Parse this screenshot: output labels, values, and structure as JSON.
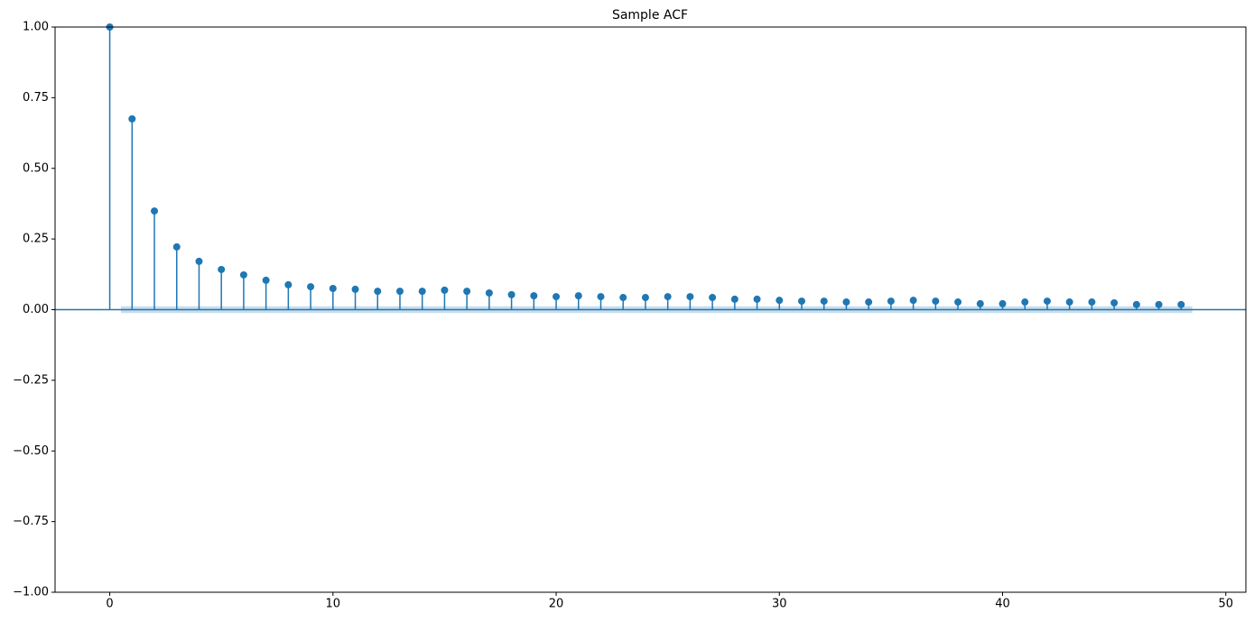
{
  "chart_data": {
    "type": "stem",
    "title": "Sample ACF",
    "x": [
      0,
      1,
      2,
      3,
      4,
      5,
      6,
      7,
      8,
      9,
      10,
      11,
      12,
      13,
      14,
      15,
      16,
      17,
      18,
      19,
      20,
      21,
      22,
      23,
      24,
      25,
      26,
      27,
      28,
      29,
      30,
      31,
      32,
      33,
      34,
      35,
      36,
      37,
      38,
      39,
      40,
      41,
      42,
      43,
      44,
      45,
      46,
      47,
      48
    ],
    "values": [
      1.0,
      0.675,
      0.349,
      0.222,
      0.171,
      0.142,
      0.123,
      0.104,
      0.088,
      0.081,
      0.075,
      0.072,
      0.065,
      0.065,
      0.065,
      0.069,
      0.065,
      0.059,
      0.053,
      0.049,
      0.046,
      0.049,
      0.046,
      0.043,
      0.043,
      0.046,
      0.046,
      0.043,
      0.037,
      0.037,
      0.033,
      0.03,
      0.03,
      0.027,
      0.027,
      0.03,
      0.033,
      0.03,
      0.027,
      0.021,
      0.021,
      0.027,
      0.03,
      0.027,
      0.027,
      0.024,
      0.018,
      0.018,
      0.018
    ],
    "color": "#1f77b4",
    "band_x": [
      0.5,
      48.5
    ],
    "band_upper": [
      0.012,
      0.012
    ],
    "band_lower": [
      -0.012,
      -0.012
    ],
    "xlim": [
      -2.45,
      50.9
    ],
    "xticks": [
      0,
      10,
      20,
      30,
      40,
      50
    ],
    "ylim": [
      -1,
      1
    ],
    "yticks": [
      {
        "value": -1,
        "label": "−1.00"
      },
      {
        "value": -0.75,
        "label": "−0.75"
      },
      {
        "value": -0.5,
        "label": "−0.50"
      },
      {
        "value": -0.25,
        "label": "−0.25"
      },
      {
        "value": 0,
        "label": "0.00"
      },
      {
        "value": 0.25,
        "label": "0.25"
      },
      {
        "value": 0.5,
        "label": "0.50"
      },
      {
        "value": 0.75,
        "label": "0.75"
      },
      {
        "value": 1,
        "label": "1.00"
      }
    ],
    "grid": false
  }
}
